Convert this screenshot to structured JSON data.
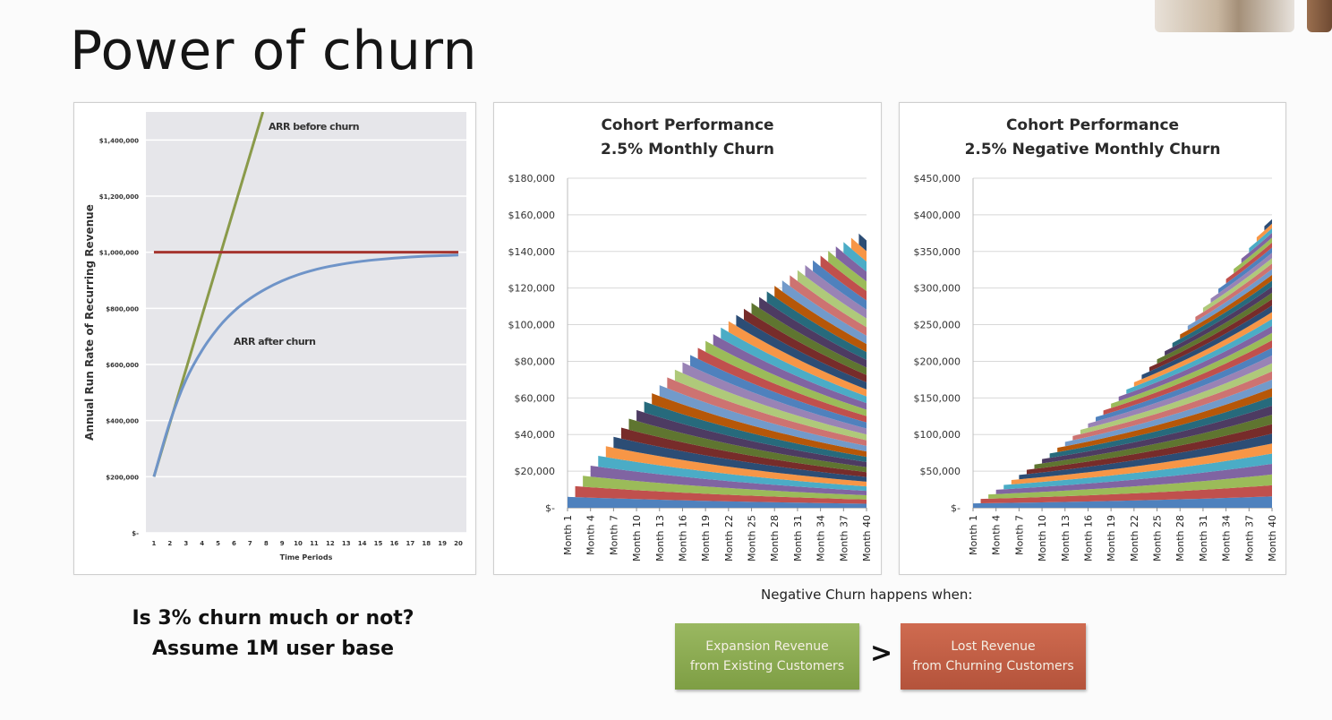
{
  "slide": {
    "title": "Power of churn",
    "question_line1": "Is 3% churn much or not?",
    "question_line2": "Assume 1M user base",
    "negative_churn_caption": "Negative Churn happens when:",
    "expansion_box_line1": "Expansion Revenue",
    "expansion_box_line2": "from Existing Customers",
    "comparison_symbol": ">",
    "lost_box_line1": "Lost Revenue",
    "lost_box_line2": "from Churning Customers",
    "colors": {
      "expansion_box": "#8aab52",
      "lost_box": "#c25e44"
    }
  },
  "chart_data": [
    {
      "type": "line",
      "title": "",
      "xlabel": "Time Periods",
      "ylabel": "Annual Run Rate of Recurring Revenue",
      "x": [
        1,
        2,
        3,
        4,
        5,
        6,
        7,
        8,
        9,
        10,
        11,
        12,
        13,
        14,
        15,
        16,
        17,
        18,
        19,
        20
      ],
      "ylim": [
        0,
        1500000
      ],
      "y_ticks": [
        0,
        200000,
        400000,
        600000,
        800000,
        1000000,
        1200000,
        1400000
      ],
      "y_tick_labels": [
        "$-",
        "$200,000",
        "$400,000",
        "$600,000",
        "$800,000",
        "$1,000,000",
        "$1,200,000",
        "$1,400,000"
      ],
      "grid": true,
      "annotations": [
        "ARR before churn",
        "ARR after churn"
      ],
      "series": [
        {
          "label": "ARR before churn",
          "color": "#8a9a4a",
          "x": [
            1,
            7.8
          ],
          "values": [
            200000,
            1500000
          ]
        },
        {
          "label": "",
          "color": "#a5352f",
          "x": [
            1,
            20
          ],
          "values": [
            1000000,
            1000000
          ]
        },
        {
          "label": "ARR after churn",
          "color": "#6f94c8",
          "x": [
            1,
            2,
            3,
            4,
            5,
            6,
            7,
            8,
            9,
            10,
            11,
            12,
            13,
            14,
            15,
            16,
            17,
            18,
            19,
            20
          ],
          "values": [
            200000,
            395000,
            545000,
            650000,
            730000,
            790000,
            835000,
            870000,
            898000,
            920000,
            937000,
            950000,
            960000,
            968000,
            974000,
            979000,
            983000,
            986000,
            988000,
            990000
          ]
        }
      ]
    },
    {
      "type": "area",
      "stacked": true,
      "title": "Cohort Performance",
      "subtitle": "2.5% Monthly Churn",
      "ylim": [
        0,
        180000
      ],
      "y_ticks": [
        0,
        20000,
        40000,
        60000,
        80000,
        100000,
        120000,
        140000,
        160000,
        180000
      ],
      "y_tick_labels": [
        "$-",
        "$20,000",
        "$40,000",
        "$60,000",
        "$80,000",
        "$100,000",
        "$120,000",
        "$140,000",
        "$160,000",
        "$180,000"
      ],
      "categories": [
        "Month 1",
        "Month 4",
        "Month 7",
        "Month 10",
        "Month 13",
        "Month 16",
        "Month 19",
        "Month 22",
        "Month 25",
        "Month 28",
        "Month 31",
        "Month 34",
        "Month 37",
        "Month 40"
      ],
      "months": 40,
      "cohort_start_revenue": 5800,
      "monthly_change": -0.025,
      "total_at_month_40": 152000,
      "grid": true,
      "series_colors": [
        "#4f81bd",
        "#c0504d",
        "#9bbb59",
        "#8064a2",
        "#4bacc6",
        "#f79646",
        "#2c4d75",
        "#772c2a",
        "#5f7530",
        "#4d3b62",
        "#276a7c",
        "#b65708",
        "#729aca",
        "#cd7371",
        "#afc97a",
        "#9983b5"
      ]
    },
    {
      "type": "area",
      "stacked": true,
      "title": "Cohort Performance",
      "subtitle": "2.5% Negative Monthly Churn",
      "ylim": [
        0,
        450000
      ],
      "y_ticks": [
        0,
        50000,
        100000,
        150000,
        200000,
        250000,
        300000,
        350000,
        400000,
        450000
      ],
      "y_tick_labels": [
        "$-",
        "$50,000",
        "$100,000",
        "$150,000",
        "$200,000",
        "$250,000",
        "$300,000",
        "$350,000",
        "$400,000",
        "$450,000"
      ],
      "categories": [
        "Month 1",
        "Month 4",
        "Month 7",
        "Month 10",
        "Month 13",
        "Month 16",
        "Month 19",
        "Month 22",
        "Month 25",
        "Month 28",
        "Month 31",
        "Month 34",
        "Month 37",
        "Month 40"
      ],
      "months": 40,
      "cohort_start_revenue": 5800,
      "monthly_change": 0.025,
      "total_at_month_40": 400000,
      "grid": true,
      "series_colors": [
        "#4f81bd",
        "#c0504d",
        "#9bbb59",
        "#8064a2",
        "#4bacc6",
        "#f79646",
        "#2c4d75",
        "#772c2a",
        "#5f7530",
        "#4d3b62",
        "#276a7c",
        "#b65708",
        "#729aca",
        "#cd7371",
        "#afc97a",
        "#9983b5"
      ]
    }
  ]
}
